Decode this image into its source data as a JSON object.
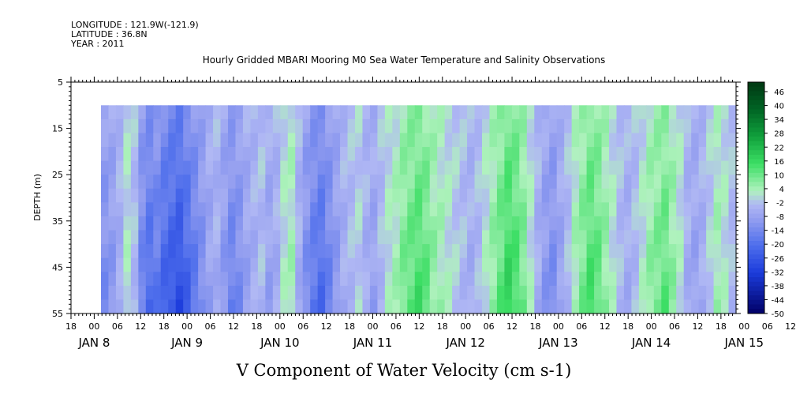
{
  "header": {
    "longitude": "LONGITUDE : 121.9W(-121.9)",
    "latitude": "LATITUDE : 36.8N",
    "year": "YEAR : 2011"
  },
  "chart_data": {
    "type": "heatmap",
    "title": "Hourly Gridded MBARI Mooring M0 Sea Water Temperature and Salinity Observations",
    "xlabel": "V Component of Water Velocity (cm s-1)",
    "ylabel": "DEPTH (m)",
    "y_ticks": [
      5,
      15,
      25,
      35,
      45,
      55
    ],
    "ylim": [
      55,
      5
    ],
    "data_depth_range": [
      10,
      55
    ],
    "x_hour_ticks": [
      "18",
      "00",
      "06",
      "12",
      "18",
      "00",
      "06",
      "12",
      "18",
      "00",
      "06",
      "12",
      "18",
      "00",
      "06",
      "12",
      "18",
      "00",
      "06",
      "12",
      "18",
      "00",
      "06",
      "12",
      "18",
      "00",
      "06",
      "12",
      "18",
      "00",
      "06",
      "12"
    ],
    "x_date_labels": [
      "JAN 8",
      "JAN 9",
      "JAN 10",
      "JAN 11",
      "JAN 12",
      "JAN 13",
      "JAN 14",
      "JAN 15"
    ],
    "x_start_hour_offset": 18,
    "colorbar_levels": [
      46,
      40,
      34,
      28,
      22,
      16,
      10,
      4,
      -2,
      -8,
      -14,
      -20,
      -26,
      -32,
      -38,
      -44,
      -50
    ],
    "colorbar_range": [
      -50,
      52
    ],
    "velocity_time_profile": [
      -10,
      -8,
      -4,
      2,
      -2,
      -12,
      -16,
      -14,
      -18,
      -20,
      -22,
      -18,
      -14,
      -10,
      -6,
      -4,
      -8,
      -12,
      -10,
      -6,
      -4,
      -2,
      -6,
      -4,
      2,
      4,
      -4,
      -10,
      -14,
      -16,
      -12,
      -8,
      -4,
      -2,
      0,
      -4,
      -6,
      -2,
      2,
      4,
      8,
      10,
      12,
      10,
      6,
      4,
      2,
      0,
      -2,
      -4,
      -2,
      2,
      6,
      10,
      14,
      12,
      8,
      2,
      -4,
      -8,
      -10,
      -6,
      -2,
      4,
      8,
      12,
      10,
      6,
      2,
      -2,
      -4,
      -2,
      2,
      6,
      8,
      10,
      6,
      2,
      -4,
      -6,
      -4,
      0,
      4,
      2,
      -2
    ],
    "colors": {
      "low": "#000066",
      "mid_low": "#aab2f2",
      "mid_high": "#a6f2b4",
      "high": "#003a12",
      "frame": "#000000"
    }
  }
}
